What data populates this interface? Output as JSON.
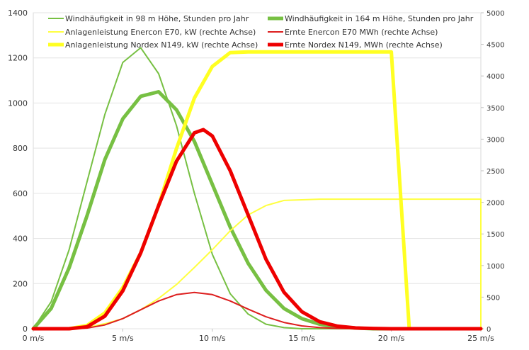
{
  "chart_data": {
    "type": "line",
    "title": "",
    "xlabel": "",
    "ylabel": "",
    "x_unit": "m/s",
    "xlim": [
      0,
      25
    ],
    "ylim_left": [
      0,
      1400
    ],
    "ylim_right": [
      0,
      5000
    ],
    "x_ticks": [
      "0 m/s",
      "5 m/s",
      "10 m/s",
      "15 m/s",
      "20 m/s",
      "25 m/s"
    ],
    "x_tick_values": [
      0,
      5,
      10,
      15,
      20,
      25
    ],
    "y_left_ticks": [
      0,
      200,
      400,
      600,
      800,
      1000,
      1200,
      1400
    ],
    "y_right_ticks": [
      0,
      500,
      1000,
      1500,
      2000,
      2500,
      3000,
      3500,
      4000,
      4500,
      5000
    ],
    "grid": true,
    "legend": "top",
    "series": [
      {
        "name": "Windhäufigkeit in 98 m Höhe, Stunden pro Jahr",
        "axis": "left",
        "color": "#77c043",
        "width": 2,
        "x": [
          0,
          1,
          2,
          3,
          4,
          5,
          6,
          7,
          8,
          9,
          10,
          11,
          12,
          13,
          14,
          15,
          16,
          17,
          18,
          19,
          20,
          21,
          22,
          23,
          24,
          25
        ],
        "y": [
          0,
          120,
          350,
          650,
          950,
          1180,
          1245,
          1130,
          900,
          600,
          330,
          155,
          65,
          20,
          5,
          0,
          0,
          0,
          0,
          0,
          0,
          0,
          0,
          0,
          0,
          0
        ]
      },
      {
        "name": "Windhäufigkeit in 164 m Höhe, Stunden pro Jahr",
        "axis": "left",
        "color": "#77c043",
        "width": 5,
        "x": [
          0,
          1,
          2,
          3,
          4,
          5,
          6,
          7,
          8,
          9,
          10,
          11,
          12,
          13,
          14,
          15,
          16,
          17,
          18,
          19,
          20,
          21,
          22,
          23,
          24,
          25
        ],
        "y": [
          0,
          90,
          270,
          500,
          750,
          930,
          1030,
          1050,
          970,
          830,
          640,
          450,
          290,
          170,
          90,
          45,
          20,
          8,
          3,
          0,
          0,
          0,
          0,
          0,
          0,
          0
        ]
      },
      {
        "name": "Anlagenleistung Enercon E70, kW (rechte Achse)",
        "axis": "right",
        "color": "#ffff40",
        "width": 2,
        "x": [
          0,
          2,
          3,
          4,
          5,
          6,
          7,
          8,
          9,
          10,
          11,
          12,
          13,
          14,
          15,
          16,
          17,
          18,
          19,
          20,
          21,
          22,
          23,
          24,
          25,
          25
        ],
        "y": [
          0,
          0,
          20,
          80,
          160,
          300,
          480,
          700,
          970,
          1250,
          1550,
          1800,
          1950,
          2030,
          2040,
          2050,
          2050,
          2050,
          2050,
          2050,
          2050,
          2050,
          2050,
          2050,
          2050,
          0
        ]
      },
      {
        "name": "Ernte Enercon E70 MWh (rechte Achse)",
        "axis": "right",
        "color": "#dd1e1e",
        "width": 2,
        "x": [
          0,
          2,
          3,
          4,
          5,
          6,
          7,
          8,
          9,
          10,
          11,
          12,
          13,
          14,
          15,
          16,
          17,
          18,
          19,
          20,
          21,
          22,
          23,
          24,
          25
        ],
        "y": [
          0,
          0,
          10,
          60,
          160,
          300,
          440,
          540,
          575,
          540,
          440,
          310,
          190,
          100,
          45,
          18,
          6,
          2,
          0,
          0,
          0,
          0,
          0,
          0,
          0
        ]
      },
      {
        "name": "Anlagenleistung Nordex N149, kW (rechte Achse)",
        "axis": "right",
        "color": "#ffff22",
        "width": 5,
        "x": [
          0,
          2,
          3,
          4,
          5,
          6,
          7,
          8,
          9,
          10,
          11,
          12,
          13,
          14,
          15,
          16,
          17,
          18,
          19,
          20,
          21,
          22,
          23,
          24,
          25
        ],
        "y": [
          0,
          0,
          50,
          250,
          650,
          1200,
          1950,
          2850,
          3650,
          4150,
          4370,
          4380,
          4380,
          4380,
          4380,
          4380,
          4380,
          4380,
          4380,
          4380,
          0,
          0,
          0,
          0,
          0
        ]
      },
      {
        "name": "Ernte Nordex N149, MWh (rechte Achse)",
        "axis": "right",
        "color": "#ee0000",
        "width": 5,
        "x": [
          0,
          2,
          3,
          4,
          5,
          6,
          7,
          8,
          9,
          9.5,
          10,
          11,
          12,
          13,
          14,
          15,
          16,
          17,
          18,
          19,
          20,
          21,
          22,
          23,
          24,
          25
        ],
        "y": [
          0,
          0,
          30,
          200,
          600,
          1200,
          1950,
          2650,
          3100,
          3150,
          3050,
          2500,
          1800,
          1100,
          580,
          270,
          110,
          40,
          12,
          4,
          0,
          0,
          0,
          0,
          0,
          0
        ]
      }
    ]
  }
}
